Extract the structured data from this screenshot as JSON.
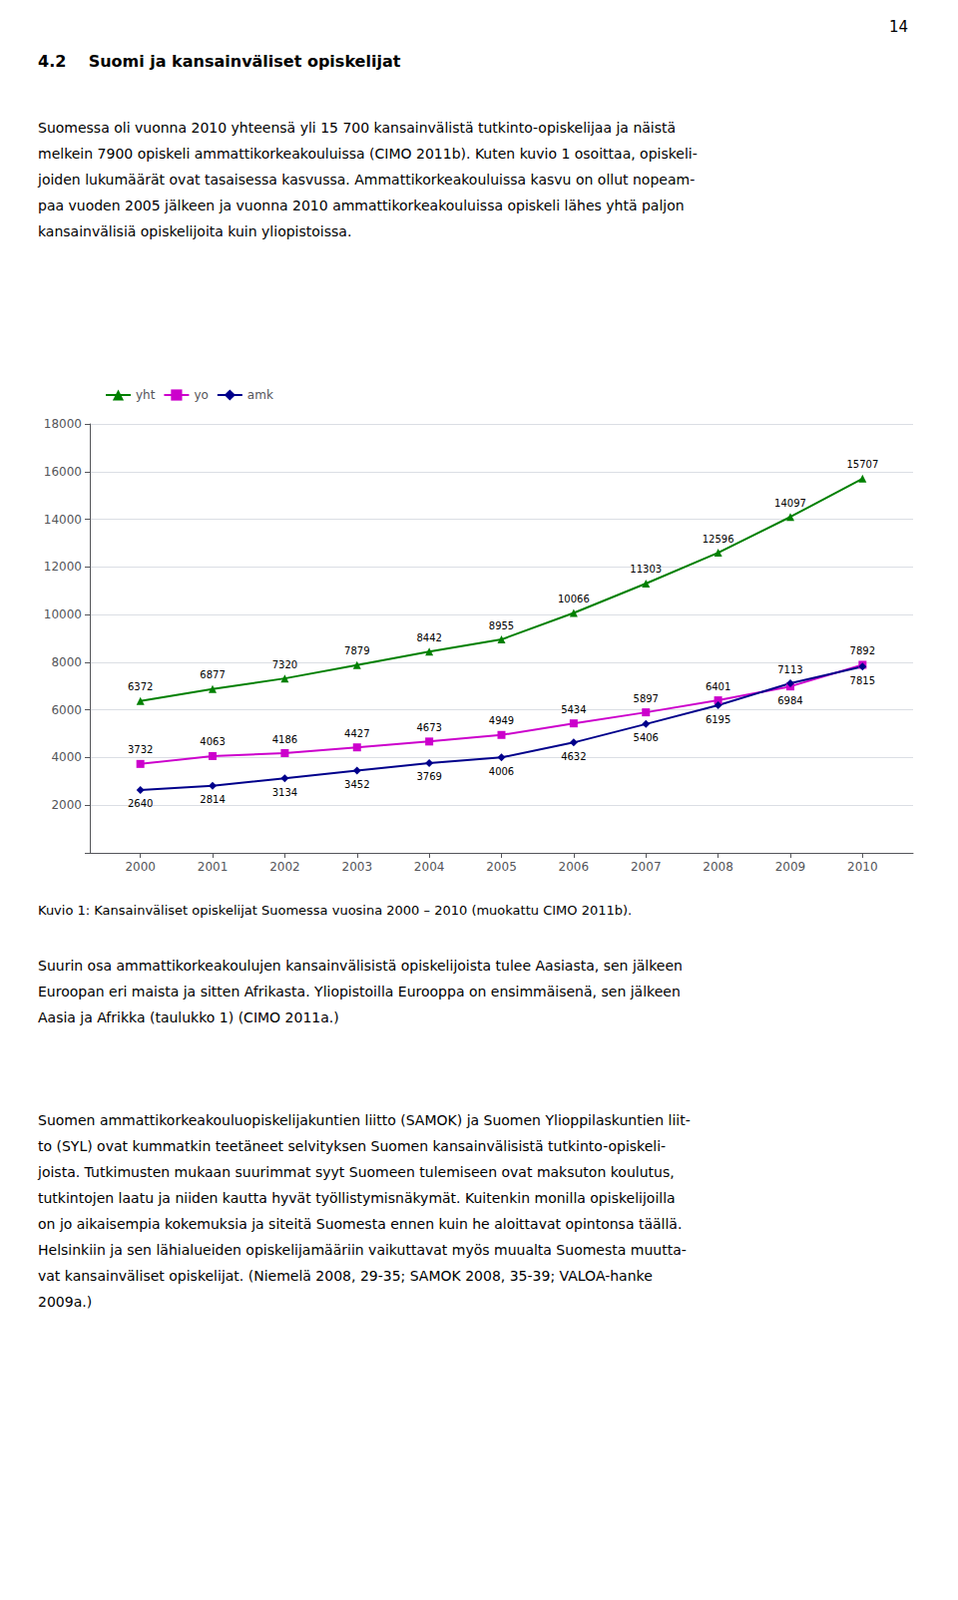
{
  "page_number": "14",
  "section_title": "4.2    Suomi ja kansainväliset opiskelijat",
  "text_before": [
    "Suomessa oli vuonna 2010 yhteensä yli 15 700 kansainvälistä tutkinto-opiskelijaa ja näistä",
    "melkein 7900 opiskeli ammattikorkeakouluissa (CIMO 2011b). Kuten kuvio 1 osoittaa, opiskeli-",
    "joiden lukumäärät ovat tasaisessa kasvussa. Ammattikorkeakouluissa kasvu on ollut nopeam-",
    "paa vuoden 2005 jälkeen ja vuonna 2010 ammattikorkeakouluissa opiskeli lähes yhtä paljon",
    "kansainvälisiä opiskelijoita kuin yliopistoissa."
  ],
  "text_after": [
    [
      "Suurin osa ammattikorkeakoulujen kansainvälisistä opiskelijoista tulee Aasiasta, sen jälkeen",
      "Euroopan eri maista ja sitten Afrikasta. Yliopistoilla Eurooppa on ensimmäisenä, sen jälkeen",
      "Aasia ja Afrikka (taulukko 1) (CIMO 2011a.)"
    ],
    [
      "Suomen ammattikorkeakouluopiskelijakuntien liitto (SAMOK) ja Suomen Ylioppilaskuntien liit-",
      "to (SYL) ovat kummatkin teetäneet selvityksen Suomen kansainvälisistä tutkinto-opiskeli-",
      "joista. Tutkimusten mukaan suurimmat syyt Suomeen tulemiseen ovat maksuton koulutus,",
      "tutkintojen laatu ja niiden kautta hyvät työllistymisnäkymät. Kuitenkin monilla opiskelijoilla",
      "on jo aikaisempia kokemuksia ja siteitä Suomesta ennen kuin he aloittavat opintonsa täällä.",
      "Helsinkiin ja sen lähialueiden opiskelijamääriin vaikuttavat myös muualta Suomesta muutta-",
      "vat kansainväliset opiskelijat. (Niemelä 2008, 29-35; SAMOK 2008, 35-39; VALOA-hanke",
      "2009a.)"
    ]
  ],
  "chart_data": {
    "type": "line",
    "caption": "Kuvio 1: Kansainväliset opiskelijat Suomessa vuosina 2000 – 2010 (muokattu CIMO 2011b).",
    "x": [
      2000,
      2001,
      2002,
      2003,
      2004,
      2005,
      2006,
      2007,
      2008,
      2009,
      2010
    ],
    "xlim": [
      1999.3,
      2010.7
    ],
    "xticks": [
      2000,
      2001,
      2002,
      2003,
      2004,
      2005,
      2006,
      2007,
      2008,
      2009,
      2010
    ],
    "ylim": [
      0,
      18000
    ],
    "yticks": [
      2000,
      4000,
      6000,
      8000,
      10000,
      12000,
      14000,
      16000,
      18000
    ],
    "grid": true,
    "legend": "upper left",
    "data_labels": true,
    "series": [
      {
        "name": "yht",
        "color": "#008000",
        "marker": "triangle",
        "values": [
          6372,
          6877,
          7320,
          7879,
          8442,
          8955,
          10066,
          11303,
          12596,
          14097,
          15707
        ]
      },
      {
        "name": "yo",
        "color": "#cc00cc",
        "marker": "square",
        "values": [
          3732,
          4063,
          4186,
          4427,
          4673,
          4949,
          5434,
          5897,
          6401,
          6984,
          7892
        ]
      },
      {
        "name": "amk",
        "color": "#00008B",
        "marker": "diamond",
        "values": [
          2640,
          2814,
          3134,
          3452,
          3769,
          4006,
          4632,
          5406,
          6195,
          7113,
          7815
        ]
      }
    ]
  }
}
